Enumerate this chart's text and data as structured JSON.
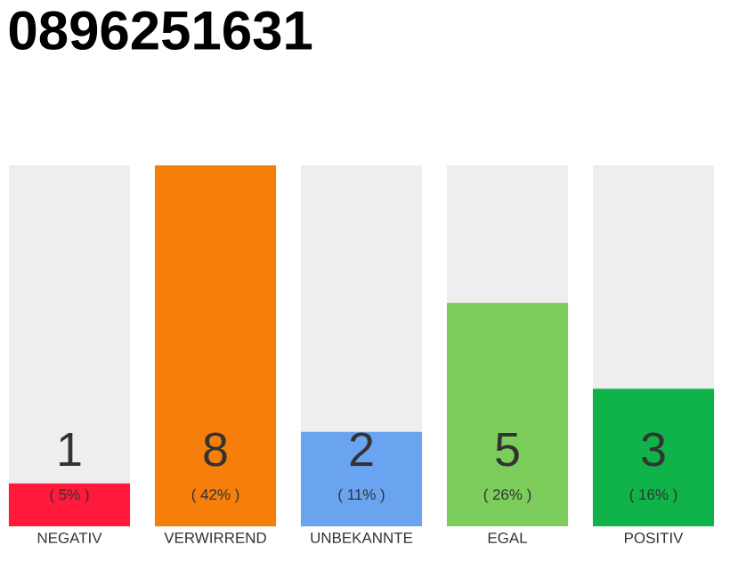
{
  "chart_data": {
    "type": "bar",
    "title": "0896251631",
    "categories": [
      "NEGATIV",
      "VERWIRREND",
      "UNBEKANNTE",
      "EGAL",
      "POSITIV"
    ],
    "values": [
      5,
      42,
      11,
      26,
      16
    ],
    "colors": [
      "#ff1a3c",
      "#f57f0a",
      "#6aa3f0",
      "#7ccd5c",
      "#10b34a"
    ],
    "value_labels": [
      "( 5% )",
      "( 42% )",
      "( 11% )",
      "( 26% )",
      "( 16% )"
    ],
    "annotations": [
      "1",
      "8",
      "2",
      "5",
      "3"
    ]
  }
}
